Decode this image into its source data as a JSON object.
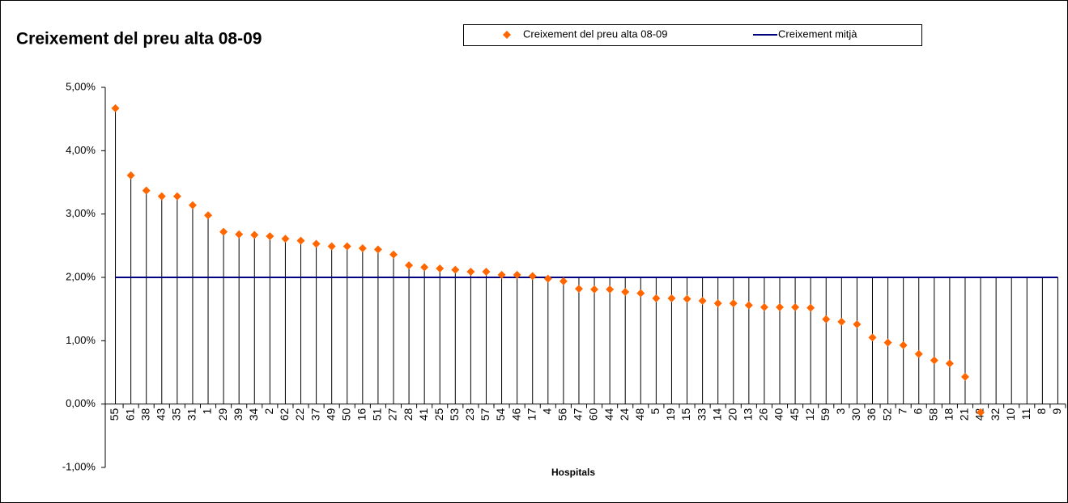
{
  "chart_data": {
    "type": "dot",
    "title": "Creixement del preu alta 08-09",
    "x_label": "Hospitals",
    "categories": [
      "55",
      "61",
      "38",
      "43",
      "35",
      "31",
      "1",
      "29",
      "39",
      "34",
      "2",
      "62",
      "22",
      "37",
      "49",
      "50",
      "16",
      "51",
      "27",
      "28",
      "41",
      "25",
      "53",
      "23",
      "57",
      "54",
      "46",
      "17",
      "4",
      "56",
      "47",
      "60",
      "44",
      "24",
      "48",
      "5",
      "19",
      "15",
      "33",
      "14",
      "20",
      "13",
      "26",
      "40",
      "45",
      "12",
      "59",
      "3",
      "30",
      "36",
      "52",
      "7",
      "6",
      "58",
      "18",
      "21",
      "42",
      "32",
      "10",
      "11",
      "8",
      "9"
    ],
    "series": [
      {
        "name": "Creixement del preu alta 08-09",
        "color": "#ff6600",
        "values": [
          4.67,
          3.61,
          3.37,
          3.28,
          3.28,
          3.14,
          2.98,
          2.72,
          2.68,
          2.67,
          2.65,
          2.61,
          2.58,
          2.53,
          2.49,
          2.49,
          2.46,
          2.44,
          2.36,
          2.19,
          2.16,
          2.14,
          2.12,
          2.09,
          2.09,
          2.04,
          2.04,
          2.02,
          1.98,
          1.94,
          1.82,
          1.81,
          1.81,
          1.77,
          1.75,
          1.67,
          1.67,
          1.66,
          1.63,
          1.59,
          1.59,
          1.56,
          1.53,
          1.53,
          1.53,
          1.52,
          1.34,
          1.3,
          1.26,
          1.05,
          0.97,
          0.93,
          0.79,
          0.69,
          0.64,
          0.43,
          -0.13,
          null,
          null,
          null,
          null,
          null
        ]
      },
      {
        "name": "Creixement mitjà",
        "color": "#000080",
        "values": [
          2,
          2,
          2,
          2,
          2,
          2,
          2,
          2,
          2,
          2,
          2,
          2,
          2,
          2,
          2,
          2,
          2,
          2,
          2,
          2,
          2,
          2,
          2,
          2,
          2,
          2,
          2,
          2,
          2,
          2,
          2,
          2,
          2,
          2,
          2,
          2,
          2,
          2,
          2,
          2,
          2,
          2,
          2,
          2,
          2,
          2,
          2,
          2,
          2,
          2,
          2,
          2,
          2,
          2,
          2,
          2,
          2,
          2,
          2,
          2,
          2,
          2
        ]
      }
    ],
    "ylim": [
      -1,
      5
    ],
    "yticks": [
      {
        "value": -1,
        "label": "-1,00%"
      },
      {
        "value": 0,
        "label": "0,00%"
      },
      {
        "value": 1,
        "label": "1,00%"
      },
      {
        "value": 2,
        "label": "2,00%"
      },
      {
        "value": 3,
        "label": "3,00%"
      },
      {
        "value": 4,
        "label": "4,00%"
      },
      {
        "value": 5,
        "label": "5,00%"
      }
    ],
    "legend": "top"
  }
}
